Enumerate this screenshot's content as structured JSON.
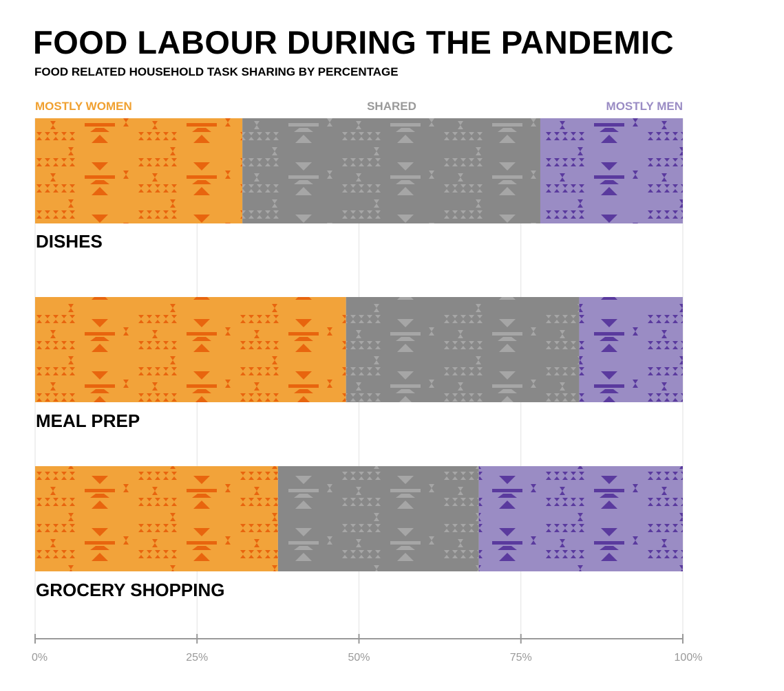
{
  "title": "FOOD LABOUR DURING THE PANDEMIC",
  "subtitle": "FOOD RELATED HOUSEHOLD TASK SHARING BY PERCENTAGE",
  "colors": {
    "women": "#f2a33a",
    "women_pattern": "#e8650e",
    "shared": "#888888",
    "shared_pattern": "#a6a6a6",
    "men": "#9a8cc4",
    "men_pattern": "#5a3a9e",
    "women_legend": "#f0a030",
    "shared_legend": "#999999",
    "men_legend": "#9a8cc4"
  },
  "chart_data": {
    "type": "bar",
    "orientation": "horizontal",
    "stacked": true,
    "title": "FOOD LABOUR DURING THE PANDEMIC",
    "subtitle": "FOOD RELATED HOUSEHOLD TASK SHARING BY PERCENTAGE",
    "categories": [
      "DISHES",
      "MEAL PREP",
      "GROCERY SHOPPING"
    ],
    "series": [
      {
        "name": "MOSTLY WOMEN",
        "values": [
          32,
          48,
          37.5
        ]
      },
      {
        "name": "SHARED",
        "values": [
          46,
          36,
          31
        ]
      },
      {
        "name": "MOSTLY MEN",
        "values": [
          22,
          16,
          31.5
        ]
      }
    ],
    "xlim": [
      0,
      100
    ],
    "ticks": [
      "0%",
      "25%",
      "50%",
      "75%",
      "100%"
    ],
    "tick_values": [
      0,
      25,
      50,
      75,
      100
    ],
    "grid": true,
    "legend_position": "top"
  }
}
